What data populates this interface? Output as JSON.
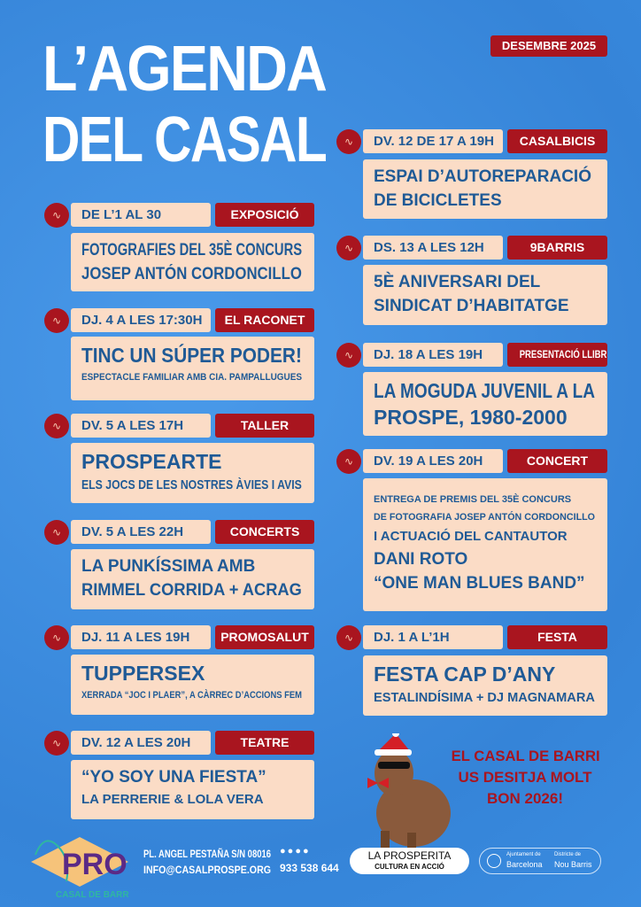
{
  "title": [
    "L’AGENDA",
    "DEL CASAL"
  ],
  "month": "DESEMBRE 2025",
  "colors": {
    "background": "#3d8fe3",
    "card": "#fbdcc6",
    "accent": "#a9151f",
    "text": "#1f5a96"
  },
  "events_left": [
    {
      "date": "DE L’1 AL 30",
      "tag": "EXPOSICIÓ",
      "lines": [
        {
          "t": "FOTOGRAFIES DEL 35È CONCURS",
          "s": "big"
        },
        {
          "t": "JOSEP ANTÓN CORDONCILLO",
          "s": "big"
        }
      ]
    },
    {
      "date": "DJ. 4 A LES 17:30H",
      "tag": "EL RACONET",
      "lines": [
        {
          "t": "TINC UN SÚPER PODER!",
          "s": "xl"
        },
        {
          "t": "ESPECTACLE FAMILIAR AMB CIA. PAMPALLUGUES",
          "s": "sm"
        }
      ]
    },
    {
      "date": "DV. 5 A LES 17H",
      "tag": "TALLER",
      "lines": [
        {
          "t": "PROSPEARTE",
          "s": "xl"
        },
        {
          "t": "ELS JOCS DE LES NOSTRES ÀVIES I AVIS",
          "s": "md"
        }
      ]
    },
    {
      "date": "DV. 5 A LES 22H",
      "tag": "CONCERTS",
      "lines": [
        {
          "t": "LA PUNKÍSSIMA AMB",
          "s": "big"
        },
        {
          "t": "RIMMEL CORRIDA + ACRAG",
          "s": "big"
        }
      ]
    },
    {
      "date": "DJ. 11 A LES 19H",
      "tag": "PROMOSALUT",
      "lines": [
        {
          "t": "TUPPERSEX",
          "s": "xl"
        },
        {
          "t": "XERRADA “JOC I PLAER”, A CÀRREC D’ACCIONS FEM",
          "s": "sm"
        }
      ]
    },
    {
      "date": "DV. 12 A LES 20H",
      "tag": "TEATRE",
      "lines": [
        {
          "t": "“YO SOY UNA FIESTA”",
          "s": "big"
        },
        {
          "t": "LA PERRERIE & LOLA VERA",
          "s": "md"
        }
      ]
    }
  ],
  "events_right": [
    {
      "date": "DV. 12 DE 17 A 19H",
      "tag": "CASALBICIS",
      "lines": [
        {
          "t": "ESPAI D’AUTOREPARACIÓ",
          "s": "big"
        },
        {
          "t": "DE BICICLETES",
          "s": "big"
        }
      ]
    },
    {
      "date": "DS. 13 A LES 12H",
      "tag": "9BARRIS",
      "lines": [
        {
          "t": "5È ANIVERSARI DEL",
          "s": "big"
        },
        {
          "t": "SINDICAT D’HABITATGE",
          "s": "big"
        }
      ]
    },
    {
      "date": "DJ. 18 A LES 19H",
      "tag": "PRESENTACIÓ LLIBRE",
      "lines": [
        {
          "t": "LA MOGUDA JUVENIL A LA",
          "s": "xl"
        },
        {
          "t": "PROSPE, 1980-2000",
          "s": "xl"
        }
      ]
    },
    {
      "date": "DV. 19 A LES 20H",
      "tag": "CONCERT",
      "lines": [
        {
          "t": "ENTREGA DE PREMIS DEL 35È CONCURS",
          "s": "sm"
        },
        {
          "t": "DE FOTOGRAFIA JOSEP ANTÓN CORDONCILLO",
          "s": "sm"
        },
        {
          "t": "I ACTUACIÓ DEL CANTAUTOR",
          "s": "md"
        },
        {
          "t": "DANI ROTO",
          "s": "big"
        },
        {
          "t": "“ONE MAN BLUES BAND”",
          "s": "big"
        }
      ]
    },
    {
      "date": "DJ. 1 A L’1H",
      "tag": "FESTA",
      "lines": [
        {
          "t": "FESTA CAP D’ANY",
          "s": "xl"
        },
        {
          "t": "ESTALINDÍSIMA + DJ MAGNAMARA",
          "s": "md"
        }
      ]
    }
  ],
  "wish": [
    "EL CASAL DE BARRI",
    "US DESITJA MOLT",
    "BON 2026!"
  ],
  "footer": {
    "logo_text": "PROSPE CASAL DE BARRI",
    "address": "PL. ANGEL PESTAÑA S/N 08016",
    "email": "INFO@CASALPROSPE.ORG",
    "social_icons": [
      "twitter-icon",
      "facebook-icon",
      "instagram-icon",
      "youtube-icon"
    ],
    "phone": "933 538 644",
    "prosperita": "LA PROSPERITA",
    "prosperita_sub": "CULTURA EN ACCIÓ",
    "ajuntament_small": "Ajuntament de",
    "ajuntament": "Barcelona",
    "districte_small": "Districte de",
    "districte": "Nou Barris"
  }
}
